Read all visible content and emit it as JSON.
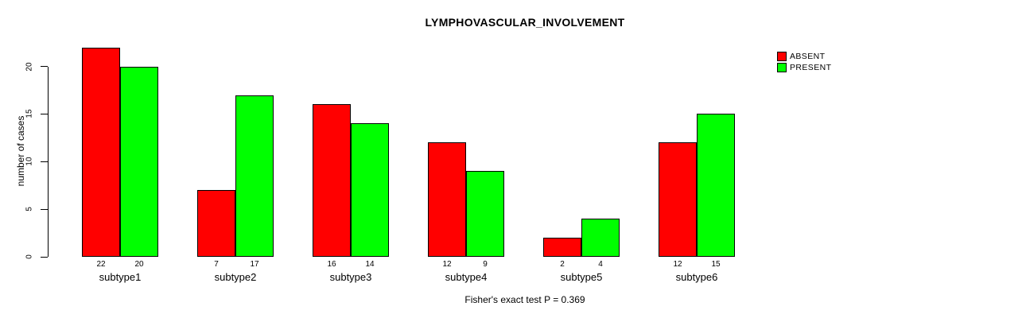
{
  "title": "LYMPHOVASCULAR_INVOLVEMENT",
  "ylabel": "number of cases",
  "annotation": "Fisher's exact test P = 0.369",
  "legend": {
    "items": [
      {
        "label": "ABSENT",
        "color": "#ff0000"
      },
      {
        "label": "PRESENT",
        "color": "#00ff00"
      }
    ]
  },
  "chart_data": {
    "type": "bar",
    "title": "LYMPHOVASCULAR_INVOLVEMENT",
    "categories": [
      "subtype1",
      "subtype2",
      "subtype3",
      "subtype4",
      "subtype5",
      "subtype6"
    ],
    "series": [
      {
        "name": "ABSENT",
        "color": "#ff0000",
        "values": [
          22,
          7,
          16,
          12,
          2,
          12
        ]
      },
      {
        "name": "PRESENT",
        "color": "#00ff00",
        "values": [
          20,
          17,
          14,
          9,
          4,
          15
        ]
      }
    ],
    "xlabel": "",
    "ylabel": "number of cases",
    "yticks": [
      0,
      5,
      10,
      15,
      20
    ],
    "ylim": [
      0,
      22
    ],
    "grid": false,
    "bar_value_labels": true,
    "bar_border_color": "#000000",
    "legend_position": "top-right",
    "annotation": "Fisher's exact test P = 0.369",
    "background": "#ffffff"
  }
}
